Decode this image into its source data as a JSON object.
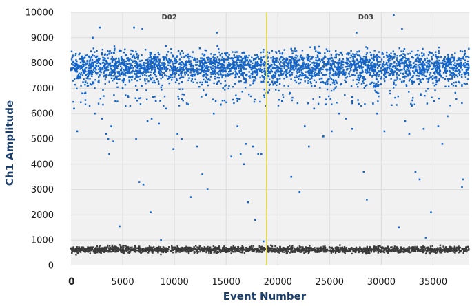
{
  "chart_data": {
    "type": "scatter",
    "xlabel": "Event Number",
    "ylabel": "Ch1 Amplitude",
    "xlim": [
      0,
      38500
    ],
    "ylim": [
      0,
      10000
    ],
    "x_ticks": [
      "0",
      "5000",
      "10000",
      "15000",
      "20000",
      "25000",
      "30000",
      "35000"
    ],
    "x_tick_values": [
      0,
      5000,
      10000,
      15000,
      20000,
      25000,
      30000,
      35000
    ],
    "y_ticks": [
      "0",
      "1000",
      "2000",
      "3000",
      "4000",
      "5000",
      "6000",
      "7000",
      "8000",
      "9000",
      "10000"
    ],
    "y_tick_values": [
      0,
      1000,
      2000,
      3000,
      4000,
      5000,
      6000,
      7000,
      8000,
      9000,
      10000
    ],
    "grid": true,
    "wells": [
      {
        "label": "D02",
        "x_center": 9500
      },
      {
        "label": "D03",
        "x_center": 28500
      }
    ],
    "divider_x": 18900,
    "series": [
      {
        "name": "",
        "role": "positive band",
        "color": "#1565c8",
        "y_center": 7850,
        "y_range": [
          7300,
          8500
        ],
        "approx_count": 3200
      },
      {
        "name": "",
        "role": "negative band",
        "color": "#3a3a3a",
        "y_center": 620,
        "y_range": [
          480,
          760
        ],
        "approx_count": 1800
      }
    ],
    "scattered_points": [
      [
        300,
        6200
      ],
      [
        600,
        5300
      ],
      [
        1100,
        6800
      ],
      [
        1600,
        7100
      ],
      [
        2100,
        9000
      ],
      [
        2300,
        6000
      ],
      [
        2800,
        9400
      ],
      [
        3000,
        5800
      ],
      [
        3400,
        5200
      ],
      [
        3600,
        5000
      ],
      [
        3700,
        4400
      ],
      [
        3900,
        5500
      ],
      [
        4100,
        4900
      ],
      [
        4300,
        6500
      ],
      [
        4700,
        1550
      ],
      [
        5000,
        7000
      ],
      [
        5500,
        6700
      ],
      [
        6100,
        9400
      ],
      [
        6300,
        5000
      ],
      [
        6600,
        3300
      ],
      [
        6900,
        9350
      ],
      [
        7000,
        3200
      ],
      [
        7400,
        5700
      ],
      [
        7700,
        2100
      ],
      [
        7800,
        5800
      ],
      [
        8200,
        6500
      ],
      [
        8500,
        5600
      ],
      [
        8700,
        1000
      ],
      [
        9200,
        6200
      ],
      [
        9900,
        4600
      ],
      [
        10300,
        5200
      ],
      [
        10700,
        5000
      ],
      [
        11200,
        6400
      ],
      [
        11600,
        2700
      ],
      [
        12200,
        4700
      ],
      [
        12700,
        3600
      ],
      [
        13200,
        3000
      ],
      [
        13800,
        6000
      ],
      [
        14100,
        9200
      ],
      [
        14700,
        7000
      ],
      [
        15500,
        4300
      ],
      [
        16100,
        5500
      ],
      [
        16400,
        4400
      ],
      [
        16700,
        4000
      ],
      [
        16900,
        4800
      ],
      [
        17100,
        2500
      ],
      [
        17600,
        4700
      ],
      [
        17800,
        1800
      ],
      [
        18100,
        4400
      ],
      [
        18400,
        4400
      ],
      [
        18600,
        950
      ],
      [
        19700,
        7200
      ],
      [
        20400,
        6500
      ],
      [
        21300,
        3500
      ],
      [
        22100,
        2900
      ],
      [
        22600,
        5500
      ],
      [
        23000,
        4700
      ],
      [
        23500,
        6200
      ],
      [
        24400,
        5100
      ],
      [
        25200,
        5300
      ],
      [
        25900,
        6000
      ],
      [
        26600,
        5800
      ],
      [
        27200,
        5400
      ],
      [
        27600,
        9200
      ],
      [
        28300,
        3700
      ],
      [
        28600,
        2600
      ],
      [
        29200,
        6400
      ],
      [
        29600,
        6000
      ],
      [
        30300,
        5300
      ],
      [
        31200,
        9900
      ],
      [
        31700,
        1500
      ],
      [
        32000,
        9350
      ],
      [
        32300,
        5700
      ],
      [
        32700,
        5200
      ],
      [
        33300,
        3700
      ],
      [
        33700,
        3400
      ],
      [
        34100,
        5400
      ],
      [
        34300,
        1100
      ],
      [
        34800,
        2100
      ],
      [
        35100,
        6500
      ],
      [
        35500,
        5500
      ],
      [
        35900,
        4800
      ],
      [
        36400,
        5900
      ],
      [
        37200,
        7100
      ],
      [
        37800,
        3100
      ],
      [
        37900,
        3400
      ]
    ]
  }
}
